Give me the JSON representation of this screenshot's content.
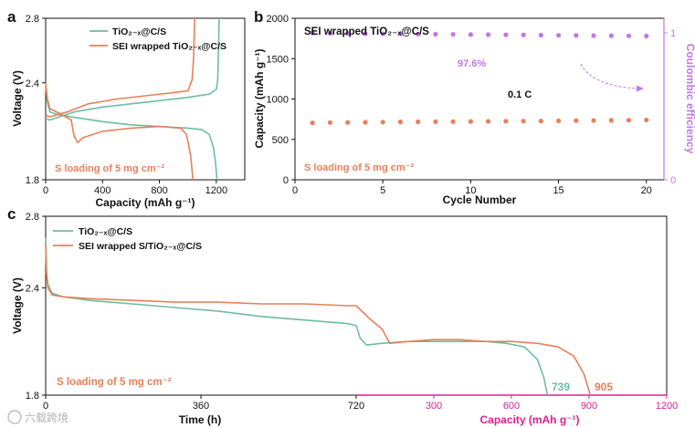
{
  "colors": {
    "green": "#6dbd9f",
    "orange": "#e8805a",
    "purple": "#c277e8",
    "magenta": "#e0208f",
    "black": "#111111"
  },
  "watermark": "六载跨境",
  "panels": {
    "a": {
      "letter": "a"
    },
    "b": {
      "letter": "b"
    },
    "c": {
      "letter": "c"
    }
  },
  "chart_data": [
    {
      "id": "a",
      "type": "line",
      "xlabel": "Capacity (mAh g⁻¹)",
      "ylabel": "Voltage (V)",
      "xlim": [
        0,
        1400
      ],
      "ylim": [
        1.8,
        2.8
      ],
      "xticks": [
        0,
        400,
        800,
        1200
      ],
      "yticks": [
        1.8,
        2.4,
        2.8
      ],
      "annotation": "S loading of 5 mg cm⁻²",
      "legend": {
        "placement": "top-right",
        "entries": [
          "TiO₂₋ₓ@C/S",
          "SEI wrapped TiO₂₋ₓ@C/S"
        ]
      },
      "series": [
        {
          "name": "TiO₂₋ₓ@C/S",
          "color": "green",
          "segments": [
            [
              [
                0,
                2.38
              ],
              [
                12,
                2.28
              ],
              [
                30,
                2.22
              ],
              [
                100,
                2.2
              ],
              [
                250,
                2.18
              ],
              [
                400,
                2.16
              ],
              [
                600,
                2.14
              ],
              [
                800,
                2.13
              ],
              [
                1000,
                2.12
              ],
              [
                1100,
                2.11
              ],
              [
                1150,
                2.08
              ],
              [
                1180,
                2.0
              ],
              [
                1195,
                1.9
              ],
              [
                1205,
                1.8
              ]
            ],
            [
              [
                0,
                2.18
              ],
              [
                30,
                2.17
              ],
              [
                200,
                2.22
              ],
              [
                400,
                2.25
              ],
              [
                600,
                2.27
              ],
              [
                800,
                2.29
              ],
              [
                1000,
                2.31
              ],
              [
                1150,
                2.33
              ],
              [
                1200,
                2.36
              ],
              [
                1210,
                2.42
              ],
              [
                1215,
                2.6
              ],
              [
                1220,
                2.8
              ]
            ]
          ]
        },
        {
          "name": "SEI wrapped TiO₂₋ₓ@C/S",
          "color": "orange",
          "segments": [
            [
              [
                0,
                2.4
              ],
              [
                12,
                2.3
              ],
              [
                30,
                2.24
              ],
              [
                100,
                2.21
              ],
              [
                180,
                2.17
              ],
              [
                200,
                2.07
              ],
              [
                225,
                2.03
              ],
              [
                260,
                2.06
              ],
              [
                400,
                2.1
              ],
              [
                600,
                2.12
              ],
              [
                800,
                2.13
              ],
              [
                950,
                2.12
              ],
              [
                990,
                2.08
              ],
              [
                1020,
                1.95
              ],
              [
                1035,
                1.8
              ]
            ],
            [
              [
                0,
                2.2
              ],
              [
                30,
                2.19
              ],
              [
                150,
                2.22
              ],
              [
                300,
                2.27
              ],
              [
                500,
                2.3
              ],
              [
                700,
                2.32
              ],
              [
                900,
                2.34
              ],
              [
                1000,
                2.35
              ],
              [
                1030,
                2.42
              ],
              [
                1040,
                2.55
              ],
              [
                1048,
                2.8
              ]
            ]
          ]
        }
      ]
    },
    {
      "id": "b",
      "type": "scatter",
      "title": "SEI wrapped TiO₂₋ₓ@C/S",
      "xlabel": "Cycle Number",
      "ylabel": "Capacity (mAh g⁻¹)",
      "y2label": "Coulombic efficiency",
      "xlim": [
        0,
        21
      ],
      "ylim": [
        0,
        2000
      ],
      "y2lim": [
        0,
        1.1
      ],
      "xticks": [
        0,
        5,
        10,
        15,
        20
      ],
      "yticks": [
        0,
        500,
        1000,
        1500,
        2000
      ],
      "y2ticks": [
        0,
        1
      ],
      "annotations": {
        "efficiency": "97.6%",
        "rate": "0.1 C",
        "loading": "S loading of 5 mg cm⁻²"
      },
      "series": [
        {
          "name": "Capacity",
          "axis": "left",
          "color": "orange",
          "x": [
            1,
            2,
            3,
            4,
            5,
            6,
            7,
            8,
            9,
            10,
            11,
            12,
            13,
            14,
            15,
            16,
            17,
            18,
            19,
            20
          ],
          "values": [
            705,
            708,
            710,
            712,
            714,
            716,
            718,
            719,
            720,
            722,
            723,
            725,
            726,
            728,
            730,
            732,
            734,
            736,
            738,
            740
          ]
        },
        {
          "name": "Coulombic efficiency",
          "axis": "right",
          "color": "purple",
          "x": [
            1,
            2,
            3,
            4,
            5,
            6,
            7,
            8,
            9,
            10,
            11,
            12,
            13,
            14,
            15,
            16,
            17,
            18,
            19,
            20
          ],
          "values": [
            1.0,
            0.998,
            0.996,
            0.995,
            0.994,
            0.993,
            0.992,
            0.991,
            0.99,
            0.989,
            0.988,
            0.987,
            0.986,
            0.985,
            0.984,
            0.983,
            0.982,
            0.981,
            0.98,
            0.979
          ]
        }
      ]
    },
    {
      "id": "c",
      "type": "line",
      "xlabel": "Time (h)",
      "x2label": "Capacity (mAh g⁻¹)",
      "ylabel": "Voltage (V)",
      "ylim": [
        1.8,
        2.8
      ],
      "yticks": [
        1.8,
        2.4,
        2.8
      ],
      "time_axis": {
        "range": [
          0,
          720
        ],
        "ticks": [
          0,
          360,
          720
        ]
      },
      "capacity_axis": {
        "range": [
          0,
          1200
        ],
        "ticks": [
          0,
          300,
          600,
          900,
          1200
        ]
      },
      "annotation": "S loading of 5 mg cm⁻²",
      "end_labels": {
        "green": "739",
        "orange": "905"
      },
      "legend": {
        "placement": "top-left",
        "entries": [
          "TiO₂₋ₓ@C/S",
          "SEI wrapped S/TiO₂₋ₓ@C/S"
        ]
      },
      "series": [
        {
          "name": "TiO₂₋ₓ@C/S",
          "color": "green",
          "time": [
            [
              0,
              2.68
            ],
            [
              2,
              2.5
            ],
            [
              5,
              2.42
            ],
            [
              15,
              2.37
            ],
            [
              40,
              2.35
            ],
            [
              100,
              2.33
            ],
            [
              200,
              2.31
            ],
            [
              300,
              2.29
            ],
            [
              400,
              2.27
            ],
            [
              500,
              2.24
            ],
            [
              600,
              2.22
            ],
            [
              700,
              2.2
            ],
            [
              720,
              2.19
            ]
          ],
          "capacity": [
            [
              0,
              2.19
            ],
            [
              15,
              2.12
            ],
            [
              40,
              2.08
            ],
            [
              100,
              2.09
            ],
            [
              200,
              2.1
            ],
            [
              300,
              2.1
            ],
            [
              400,
              2.1
            ],
            [
              500,
              2.1
            ],
            [
              580,
              2.09
            ],
            [
              650,
              2.07
            ],
            [
              700,
              2.0
            ],
            [
              725,
              1.9
            ],
            [
              739,
              1.8
            ]
          ]
        },
        {
          "name": "SEI wrapped S/TiO₂₋ₓ@C/S",
          "color": "orange",
          "time": [
            [
              0,
              2.65
            ],
            [
              2,
              2.48
            ],
            [
              5,
              2.4
            ],
            [
              15,
              2.36
            ],
            [
              40,
              2.35
            ],
            [
              100,
              2.34
            ],
            [
              200,
              2.33
            ],
            [
              300,
              2.32
            ],
            [
              400,
              2.32
            ],
            [
              500,
              2.31
            ],
            [
              600,
              2.31
            ],
            [
              700,
              2.3
            ],
            [
              720,
              2.3
            ]
          ],
          "capacity": [
            [
              0,
              2.3
            ],
            [
              50,
              2.23
            ],
            [
              100,
              2.17
            ],
            [
              130,
              2.09
            ],
            [
              200,
              2.1
            ],
            [
              300,
              2.11
            ],
            [
              400,
              2.11
            ],
            [
              500,
              2.1
            ],
            [
              600,
              2.1
            ],
            [
              700,
              2.09
            ],
            [
              780,
              2.07
            ],
            [
              840,
              2.02
            ],
            [
              880,
              1.92
            ],
            [
              905,
              1.8
            ]
          ]
        }
      ]
    }
  ]
}
